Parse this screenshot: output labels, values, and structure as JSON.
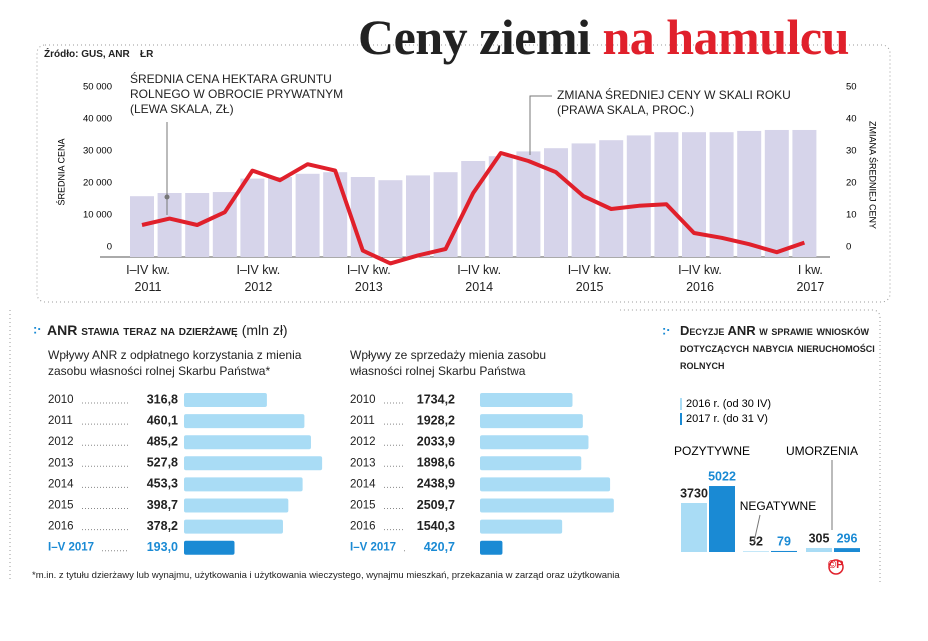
{
  "header": {
    "title": "Ceny ziemi",
    "title_highlight": "na hamulcu",
    "source": "Źródło: GUS, ANR",
    "author": "ŁR"
  },
  "chart_data": [
    {
      "type": "bar_line",
      "categories": [
        "I–IV kw.\n2011",
        null,
        null,
        null,
        "I–IV kw.\n2012",
        null,
        null,
        null,
        "I–IV kw.\n2013",
        null,
        null,
        null,
        "I–IV kw.\n2014",
        null,
        null,
        null,
        "I–IV kw.\n2015",
        null,
        null,
        null,
        "I–IV kw.\n2016",
        null,
        null,
        null,
        "I kw.\n2017"
      ],
      "series": [
        {
          "name": "ŚREDNIA CENA HEKTARA GRUNTU\nROLNEGO W OBROCIE PRYWATNYM\n(LEWA SKALA, ZŁ)",
          "color": "#d6d4ea",
          "values": [
            19000,
            20000,
            20000,
            20300,
            24500,
            25000,
            26000,
            26500,
            25000,
            24000,
            25500,
            26500,
            30000,
            31500,
            33000,
            34000,
            35500,
            36500,
            38000,
            39000,
            39000,
            39000,
            39400,
            39700,
            39700
          ]
        },
        {
          "name": "ZMIANA ŚREDNIEJ CENY W SKALI ROKU\n(PRAWA SKALA, PROC.)",
          "color": "#e0202b",
          "axis": "y2",
          "values": [
            10,
            12,
            10,
            14,
            27,
            24,
            29,
            27,
            2,
            -2,
            0.5,
            2.5,
            20,
            32.5,
            30,
            26.5,
            19,
            15,
            16,
            16.5,
            7.5,
            6,
            4,
            1.5,
            4.5
          ]
        }
      ],
      "ylabel": "ŚREDNIA CENA",
      "y2label": "ZMIANA ŚREDNIEJ CENY",
      "ylim": [
        0,
        50000
      ],
      "yticks": [
        0,
        {
          "value": 10000,
          "label": "10 000"
        },
        {
          "value": 20000,
          "label": "20 000"
        },
        {
          "value": 30000,
          "label": "30 000"
        },
        {
          "value": 40000,
          "label": "40 000"
        },
        {
          "value": 50000,
          "label": "50 000"
        }
      ],
      "y2lim": [
        0,
        50
      ],
      "y2ticks": [
        0,
        10,
        20,
        30,
        40,
        50
      ]
    },
    {
      "type": "hbar",
      "title": "ANR stawia teraz na dzierżawę",
      "unit": "(mln zł)",
      "subtitle": "Wpływy ANR z odpłatnego korzystania z mienia\nzasobu własności rolnej Skarbu Państwa*",
      "categories": [
        "2010",
        "2011",
        "2012",
        "2013",
        "2014",
        "2015",
        "2016",
        "I–V 2017"
      ],
      "values": [
        316.8,
        460.1,
        485.2,
        527.8,
        453.3,
        398.7,
        378.2,
        193.0
      ],
      "value_labels": [
        "316,8",
        "460,1",
        "485,2",
        "527,8",
        "453,3",
        "398,7",
        "378,2",
        "193,0"
      ],
      "colors": [
        "#a9dcf5",
        "#a9dcf5",
        "#a9dcf5",
        "#a9dcf5",
        "#a9dcf5",
        "#a9dcf5",
        "#a9dcf5",
        "#1a8ad4"
      ],
      "xlim": [
        0,
        535
      ]
    },
    {
      "type": "hbar",
      "subtitle": "Wpływy ze sprzedaży mienia zasobu\nwłasności rolnej Skarbu Państwa",
      "categories": [
        "2010",
        "2011",
        "2012",
        "2013",
        "2014",
        "2015",
        "2016",
        "I–V 2017"
      ],
      "values": [
        1734.2,
        1928.2,
        2033.9,
        1898.6,
        2438.9,
        2509.7,
        1540.3,
        420.7
      ],
      "value_labels": [
        "1734,2",
        "1928,2",
        "2033,9",
        "1898,6",
        "2438,9",
        "2509,7",
        "1540,3",
        "420,7"
      ],
      "colors": [
        "#a9dcf5",
        "#a9dcf5",
        "#a9dcf5",
        "#a9dcf5",
        "#a9dcf5",
        "#a9dcf5",
        "#a9dcf5",
        "#1a8ad4"
      ],
      "xlim": [
        0,
        2550
      ]
    },
    {
      "type": "grouped_bar",
      "title": "Decyzje ANR w sprawie wniosków dotyczących nabycia nieruchomości rolnych",
      "categories": [
        "POZYTYWNE",
        "NEGATYWNE",
        "UMORZENIA"
      ],
      "series": [
        {
          "name": "2016 r. (od 30 IV)",
          "color": "#a9dcf5",
          "values": [
            3730,
            52,
            305
          ]
        },
        {
          "name": "2017 r. (do 31 V)",
          "color": "#1a8ad4",
          "values": [
            5022,
            79,
            296
          ]
        }
      ],
      "ylim": [
        0,
        5100
      ]
    }
  ],
  "footnote": "*m.in. z tytułu dzierżawy lub wynajmu, użytkowania i użytkowania wieczystego, wynajmu mieszkań, przekazania w zarząd oraz  użytkowania",
  "copyright": "©P"
}
